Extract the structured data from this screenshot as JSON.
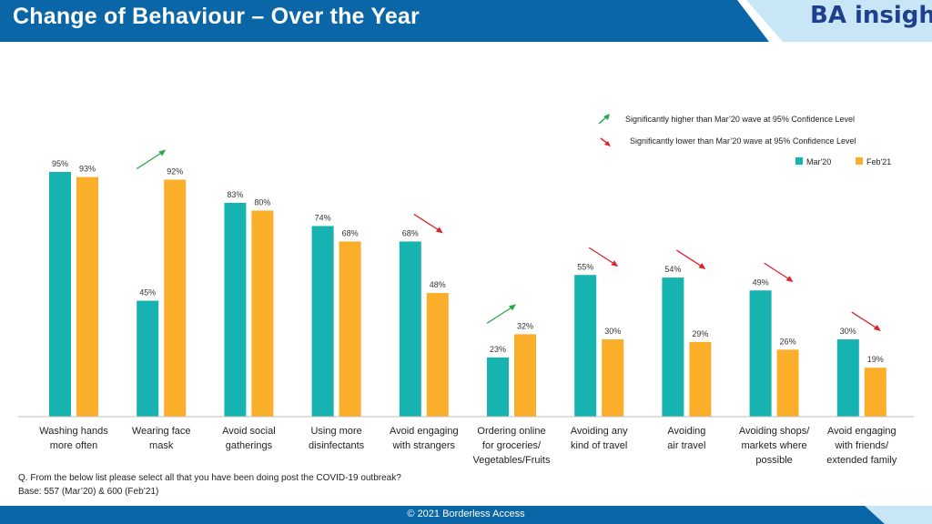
{
  "page": {
    "title": "Change of Behaviour – Over the Year",
    "logo_text": "BA insightz",
    "question": "Q. From the below list please select all that you have been doing post the COVID-19 outbreak?",
    "base": "Base: 557 (Mar’20) & 600 (Feb’21)",
    "copyright": "© 2021  Borderless Access",
    "colors": {
      "header": "#0b66a8",
      "light_band": "#c8e6f5",
      "footer": "#0b66a8"
    }
  },
  "chart_data": {
    "type": "bar",
    "title": "Change of Behaviour – Over the Year",
    "xlabel": "",
    "ylabel": "",
    "ylim": [
      0,
      100
    ],
    "grid": false,
    "legend_position": "top-right",
    "categories": [
      [
        "Washing hands",
        "more often"
      ],
      [
        "Wearing face",
        "mask"
      ],
      [
        "Avoid social",
        "gatherings"
      ],
      [
        "Using more",
        "disinfectants"
      ],
      [
        "Avoid engaging",
        "with strangers"
      ],
      [
        "Ordering online",
        "for groceries/",
        "Vegetables/Fruits"
      ],
      [
        "Avoiding any",
        "kind of travel"
      ],
      [
        "Avoiding",
        "air travel"
      ],
      [
        "Avoiding shops/",
        "markets where",
        "possible"
      ],
      [
        "Avoid engaging",
        "with friends/",
        "extended family"
      ]
    ],
    "series": [
      {
        "name": "Mar'20",
        "color": "#17b3b0",
        "values": [
          95,
          45,
          83,
          74,
          68,
          23,
          55,
          54,
          49,
          30
        ]
      },
      {
        "name": "Feb'21",
        "color": "#fbae2a",
        "values": [
          93,
          92,
          80,
          68,
          48,
          32,
          30,
          29,
          26,
          19
        ]
      }
    ],
    "value_suffix": "%",
    "significance": [
      "none",
      "higher",
      "none",
      "none",
      "lower",
      "higher",
      "lower",
      "lower",
      "lower",
      "lower"
    ],
    "sig_legend": {
      "higher": {
        "label": "Significantly higher than Mar’20 wave at 95% Confidence Level",
        "color": "#2aa64a"
      },
      "lower": {
        "label": "Significantly lower than Mar’20 wave at 95% Confidence Level",
        "color": "#d9262b"
      }
    }
  }
}
